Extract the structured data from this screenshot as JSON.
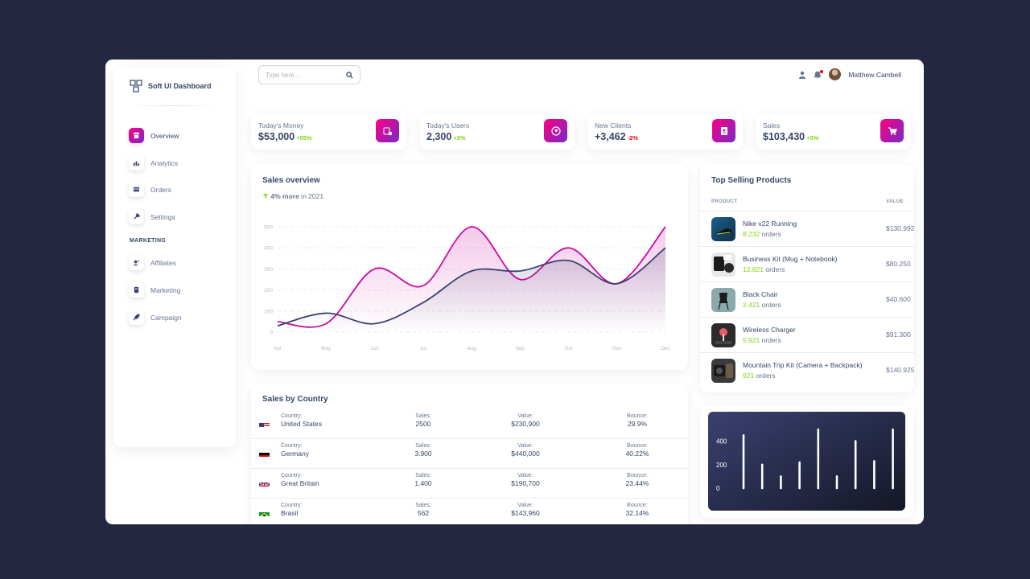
{
  "brand": {
    "name": "Soft UI Dashboard"
  },
  "sidebar": {
    "items": [
      {
        "label": "Overview",
        "icon": "shop-icon",
        "active": true
      },
      {
        "label": "Analytics",
        "icon": "chart-icon",
        "active": false
      },
      {
        "label": "Orders",
        "icon": "card-icon",
        "active": false
      },
      {
        "label": "Settings",
        "icon": "tools-icon",
        "active": false
      }
    ],
    "section_label": "MARKETING",
    "marketing_items": [
      {
        "label": "Affiliates",
        "icon": "users-icon"
      },
      {
        "label": "Marketing",
        "icon": "document-icon"
      },
      {
        "label": "Campaign",
        "icon": "rocket-icon"
      }
    ]
  },
  "header": {
    "search_placeholder": "Type here...",
    "user_name": "Matthew Cambell"
  },
  "stats": [
    {
      "label": "Today's Money",
      "value": "$53,000",
      "delta": "+55%",
      "delta_color": "#82d616"
    },
    {
      "label": "Today's Users",
      "value": "2,300",
      "delta": "+3%",
      "delta_color": "#82d616"
    },
    {
      "label": "New Clients",
      "value": "+3,462",
      "delta": "-2%",
      "delta_color": "#ea0606"
    },
    {
      "label": "Sales",
      "value": "$103,430",
      "delta": "+5%",
      "delta_color": "#82d616"
    }
  ],
  "sales_overview": {
    "title": "Sales overview",
    "subtitle_bold": "4% more",
    "subtitle_rest": " in 2021"
  },
  "chart_data": {
    "type": "line",
    "categories": [
      "Apr",
      "May",
      "Jun",
      "Jul",
      "Aug",
      "Sep",
      "Oct",
      "Nov",
      "Dec"
    ],
    "yticks": [
      0,
      100,
      200,
      300,
      400,
      500
    ],
    "ylim": [
      0,
      500
    ],
    "series": [
      {
        "values": [
          50,
          40,
          300,
          220,
          500,
          250,
          400,
          230,
          500
        ],
        "color": "#cb0c9f",
        "fill": true
      },
      {
        "values": [
          30,
          90,
          40,
          140,
          290,
          290,
          340,
          230,
          400
        ],
        "color": "#3a416f",
        "fill": true
      }
    ]
  },
  "top_selling": {
    "title": "Top Selling Products",
    "col_product": "PRODUCT",
    "col_value": "VALUE",
    "orders_suffix": "orders",
    "products": [
      {
        "name": "Nike v22 Running",
        "orders": "8.232",
        "value": "$130.992"
      },
      {
        "name": "Business Kit (Mug + Notebook)",
        "orders": "12.821",
        "value": "$80.250"
      },
      {
        "name": "Black Chair",
        "orders": "2.421",
        "value": "$40.600"
      },
      {
        "name": "Wireless Charger",
        "orders": "5.921",
        "value": "$91.300"
      },
      {
        "name": "Mountain Trip Kit (Camera + Backpack)",
        "orders": "921",
        "value": "$140.925"
      }
    ]
  },
  "sales_by_country": {
    "title": "Sales by Country",
    "labels": {
      "country": "Country:",
      "sales": "Sales:",
      "value": "Value:",
      "bounce": "Bounce:"
    },
    "rows": [
      {
        "country": "United States",
        "flag": "us-flag",
        "sales": "2500",
        "value": "$230,900",
        "bounce": "29.9%"
      },
      {
        "country": "Germany",
        "flag": "de-flag",
        "sales": "3.900",
        "value": "$440,000",
        "bounce": "40.22%"
      },
      {
        "country": "Great Britain",
        "flag": "gb-flag",
        "sales": "1.400",
        "value": "$190,700",
        "bounce": "23.44%"
      },
      {
        "country": "Brasil",
        "flag": "br-flag",
        "sales": "562",
        "value": "$143,960",
        "bounce": "32.14%"
      }
    ]
  },
  "bar_chart": {
    "chart_data": {
      "type": "bar",
      "yticks": [
        0,
        200,
        400
      ],
      "ylim": [
        0,
        500
      ],
      "values": [
        450,
        200,
        100,
        220,
        500,
        100,
        400,
        230,
        500
      ]
    }
  }
}
